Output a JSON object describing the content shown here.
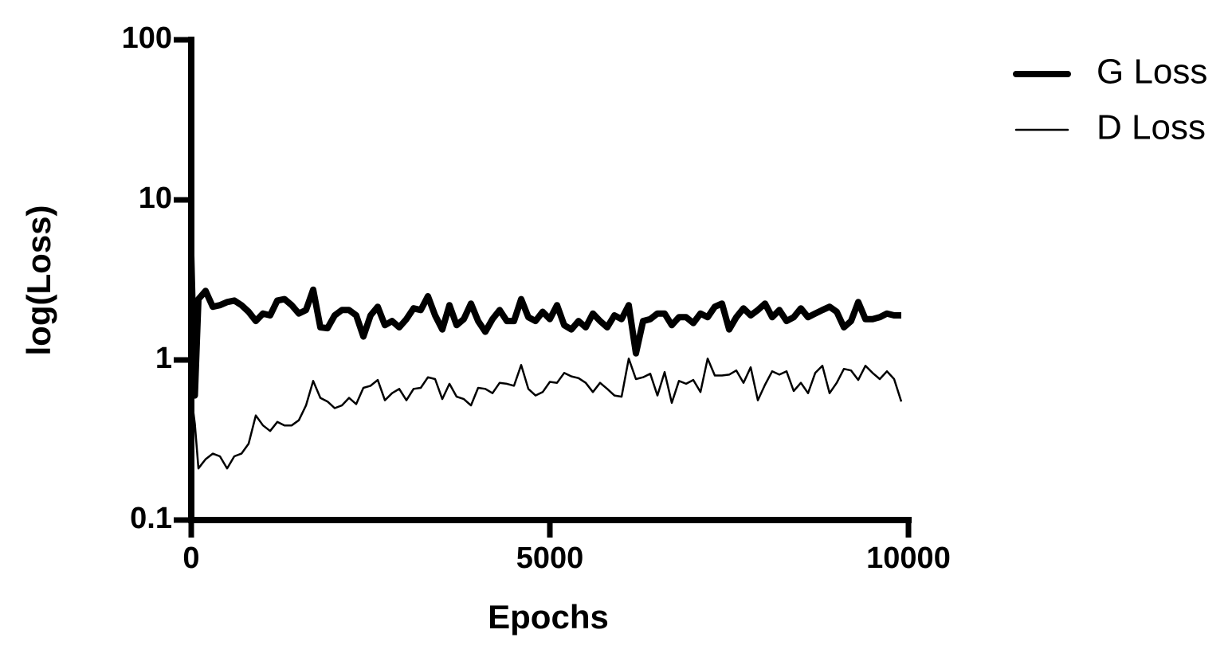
{
  "chart_data": {
    "type": "line",
    "x_label": "Epochs",
    "y_label": "log(Loss)",
    "x": [
      0,
      50,
      100,
      200,
      300,
      400,
      500,
      600,
      700,
      800,
      900,
      1000,
      1100,
      1200,
      1300,
      1400,
      1500,
      1600,
      1700,
      1800,
      1900,
      2000,
      2100,
      2200,
      2300,
      2400,
      2500,
      2600,
      2700,
      2800,
      2900,
      3000,
      3100,
      3200,
      3300,
      3400,
      3500,
      3600,
      3700,
      3800,
      3900,
      4000,
      4100,
      4200,
      4300,
      4400,
      4500,
      4600,
      4700,
      4800,
      4900,
      5000,
      5100,
      5200,
      5300,
      5400,
      5500,
      5600,
      5700,
      5800,
      5900,
      6000,
      6100,
      6200,
      6300,
      6400,
      6500,
      6600,
      6700,
      6800,
      6900,
      7000,
      7100,
      7200,
      7300,
      7400,
      7500,
      7600,
      7700,
      7800,
      7900,
      8000,
      8100,
      8200,
      8300,
      8400,
      8500,
      8600,
      8700,
      8800,
      8900,
      9000,
      9100,
      9200,
      9300,
      9400,
      9500,
      9600,
      9700,
      9800,
      9900
    ],
    "series": [
      {
        "name": "G Loss",
        "color": "#000000",
        "width": 8,
        "values": [
          4.5,
          0.6,
          2.4,
          2.7,
          2.15,
          2.2,
          2.3,
          2.35,
          2.2,
          2.0,
          1.75,
          1.95,
          1.9,
          2.35,
          2.4,
          2.2,
          1.95,
          2.05,
          2.75,
          1.6,
          1.58,
          1.9,
          2.05,
          2.05,
          1.9,
          1.4,
          1.9,
          2.15,
          1.65,
          1.75,
          1.6,
          1.8,
          2.1,
          2.05,
          2.5,
          1.9,
          1.55,
          2.2,
          1.65,
          1.8,
          2.25,
          1.75,
          1.5,
          1.8,
          2.05,
          1.75,
          1.75,
          2.4,
          1.85,
          1.75,
          2.0,
          1.8,
          2.2,
          1.65,
          1.55,
          1.75,
          1.6,
          1.95,
          1.75,
          1.6,
          1.9,
          1.8,
          2.2,
          1.1,
          1.75,
          1.8,
          1.95,
          1.95,
          1.65,
          1.85,
          1.85,
          1.7,
          1.95,
          1.85,
          2.15,
          2.25,
          1.55,
          1.85,
          2.1,
          1.9,
          2.05,
          2.25,
          1.85,
          2.05,
          1.75,
          1.85,
          2.1,
          1.85,
          1.95,
          2.05,
          2.15,
          2.0,
          1.6,
          1.75,
          2.3,
          1.8,
          1.8,
          1.85,
          1.95,
          1.9,
          1.9
        ]
      },
      {
        "name": "D Loss",
        "color": "#000000",
        "width": 2.5,
        "values": [
          0.6,
          0.4,
          0.21,
          0.24,
          0.26,
          0.25,
          0.21,
          0.25,
          0.26,
          0.3,
          0.45,
          0.39,
          0.36,
          0.41,
          0.39,
          0.39,
          0.42,
          0.52,
          0.74,
          0.58,
          0.55,
          0.5,
          0.52,
          0.58,
          0.53,
          0.67,
          0.69,
          0.75,
          0.56,
          0.62,
          0.66,
          0.56,
          0.66,
          0.67,
          0.78,
          0.76,
          0.57,
          0.71,
          0.59,
          0.57,
          0.52,
          0.67,
          0.66,
          0.62,
          0.72,
          0.71,
          0.69,
          0.93,
          0.66,
          0.6,
          0.63,
          0.73,
          0.72,
          0.83,
          0.79,
          0.77,
          0.72,
          0.63,
          0.72,
          0.66,
          0.6,
          0.59,
          1.02,
          0.76,
          0.78,
          0.82,
          0.6,
          0.84,
          0.54,
          0.74,
          0.71,
          0.75,
          0.63,
          1.02,
          0.8,
          0.8,
          0.81,
          0.86,
          0.72,
          0.9,
          0.56,
          0.7,
          0.85,
          0.81,
          0.85,
          0.64,
          0.72,
          0.62,
          0.83,
          0.92,
          0.62,
          0.72,
          0.88,
          0.86,
          0.75,
          0.92,
          0.83,
          0.76,
          0.85,
          0.76,
          0.55
        ]
      }
    ],
    "xlim": [
      0,
      10000
    ],
    "xticks": [
      0,
      5000,
      10000
    ],
    "ylim": [
      0.1,
      100
    ],
    "yticks": [
      0.1,
      1,
      10,
      100
    ],
    "ylog": true,
    "legend": "top-right"
  }
}
